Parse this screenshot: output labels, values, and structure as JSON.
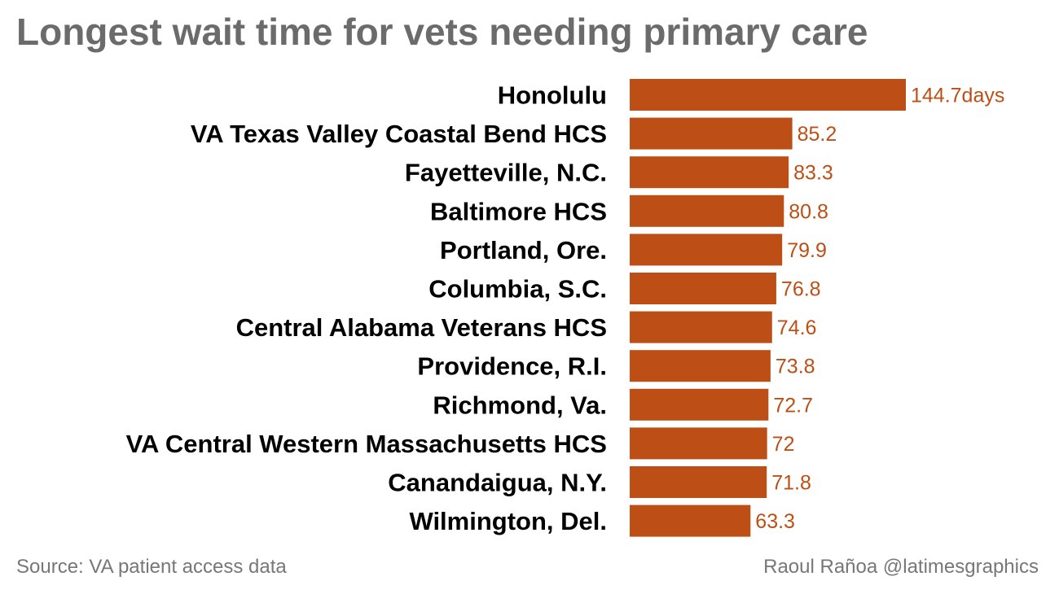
{
  "chart_data": {
    "type": "bar",
    "orientation": "horizontal",
    "title": "Longest wait time for vets needing primary care",
    "categories": [
      "Honolulu",
      "VA Texas Valley Coastal Bend HCS",
      "Fayetteville, N.C.",
      "Baltimore HCS",
      "Portland, Ore.",
      "Columbia, S.C.",
      "Central Alabama Veterans HCS",
      "Providence, R.I.",
      "Richmond, Va.",
      "VA Central Western Massachusetts HCS",
      "Canandaigua, N.Y.",
      "Wilmington, Del."
    ],
    "values": [
      144.7,
      85.2,
      83.3,
      80.8,
      79.9,
      76.8,
      74.6,
      73.8,
      72.7,
      72,
      71.8,
      63.3
    ],
    "value_labels": [
      "144.7days",
      "85.2",
      "83.3",
      "80.8",
      "79.9",
      "76.8",
      "74.6",
      "73.8",
      "72.7",
      "72",
      "71.8",
      "63.3"
    ],
    "unit": "days",
    "xlabel": "",
    "ylabel": "",
    "xlim": [
      0,
      144.7
    ],
    "grid": false,
    "bar_color": "#BD4F16",
    "label_color": "#BD4F16"
  },
  "footer": {
    "source": "Source: VA patient access data",
    "credit": "Raoul Rañoa @latimesgraphics"
  }
}
